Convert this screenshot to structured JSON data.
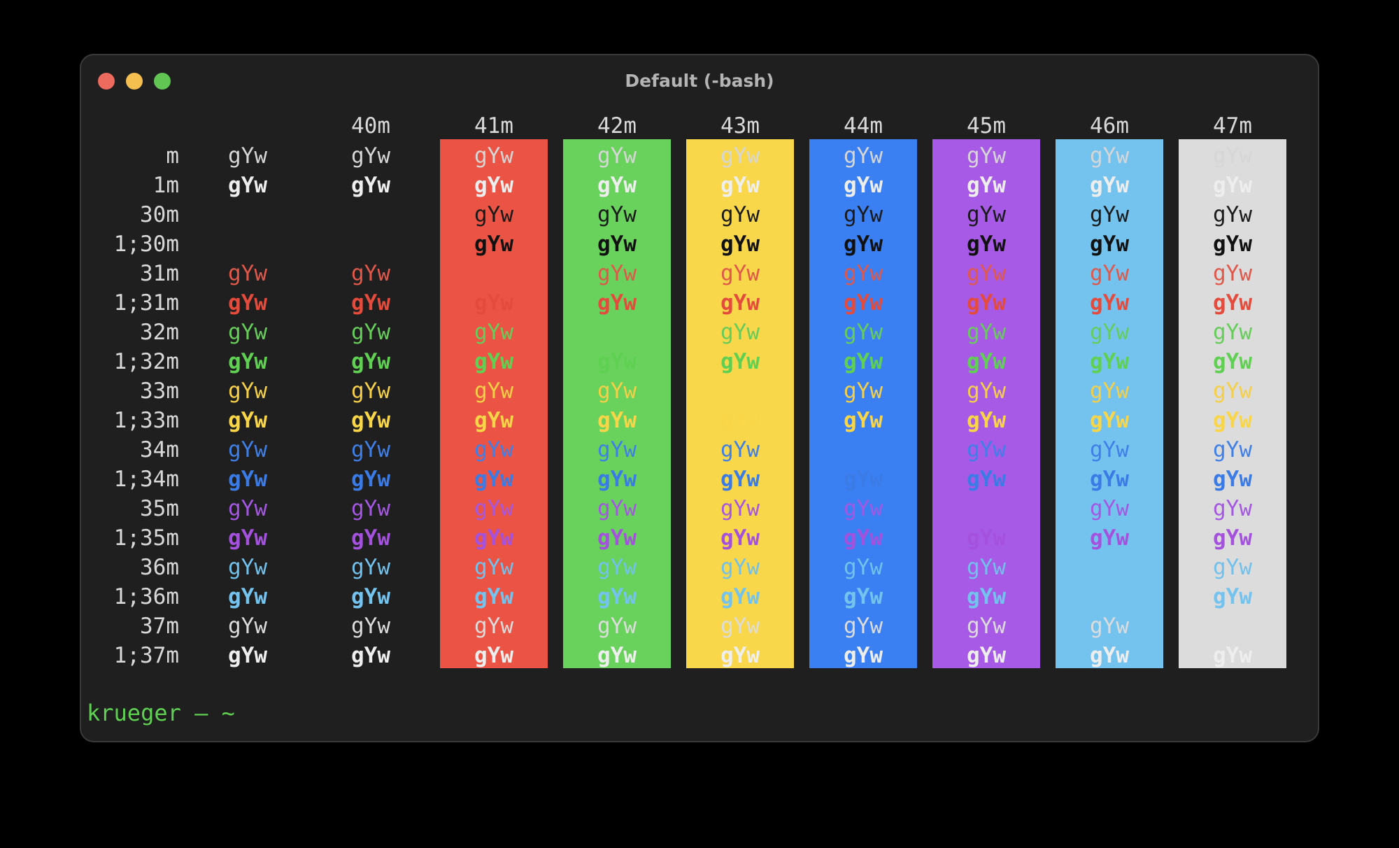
{
  "window": {
    "title": "Default (-bash)"
  },
  "table": {
    "sample": "gYw",
    "headers": [
      "40m",
      "41m",
      "42m",
      "43m",
      "44m",
      "45m",
      "46m",
      "47m"
    ],
    "rows": [
      {
        "label": "m",
        "bold": false,
        "fg": "#d6d6d6",
        "hide_in": []
      },
      {
        "label": "1m",
        "bold": true,
        "fg": "#eeeeee",
        "hide_in": []
      },
      {
        "label": "30m",
        "bold": false,
        "fg": "#1a1a1a",
        "hide_in": [
          "plain",
          "40m"
        ]
      },
      {
        "label": "1;30m",
        "bold": true,
        "fg": "#111111",
        "hide_in": [
          "plain",
          "40m"
        ]
      },
      {
        "label": "31m",
        "bold": false,
        "fg": "#e0584a",
        "hide_in": [
          "41m"
        ]
      },
      {
        "label": "1;31m",
        "bold": true,
        "fg": "#e44b3c",
        "hide_in": []
      },
      {
        "label": "32m",
        "bold": false,
        "fg": "#66cc5a",
        "hide_in": [
          "42m"
        ]
      },
      {
        "label": "1;32m",
        "bold": true,
        "fg": "#5fd052",
        "hide_in": []
      },
      {
        "label": "33m",
        "bold": false,
        "fg": "#f5d046",
        "hide_in": [
          "43m"
        ]
      },
      {
        "label": "1;33m",
        "bold": true,
        "fg": "#f9d648",
        "hide_in": []
      },
      {
        "label": "34m",
        "bold": false,
        "fg": "#3f7fe8",
        "hide_in": [
          "44m"
        ]
      },
      {
        "label": "1;34m",
        "bold": true,
        "fg": "#3a7be6",
        "hide_in": []
      },
      {
        "label": "35m",
        "bold": false,
        "fg": "#a457e2",
        "hide_in": [
          "45m"
        ]
      },
      {
        "label": "1;35m",
        "bold": true,
        "fg": "#a452de",
        "hide_in": []
      },
      {
        "label": "36m",
        "bold": false,
        "fg": "#72c0ec",
        "hide_in": [
          "46m"
        ]
      },
      {
        "label": "1;36m",
        "bold": true,
        "fg": "#74c3ee",
        "hide_in": []
      },
      {
        "label": "37m",
        "bold": false,
        "fg": "#dcdcdc",
        "hide_in": []
      },
      {
        "label": "1;37m",
        "bold": true,
        "fg": "#eeeeee",
        "hide_in": []
      }
    ],
    "backgrounds": {
      "41m": "#eb5444",
      "42m": "#68d25c",
      "43m": "#f8d74b",
      "44m": "#3b80f3",
      "45m": "#a75ae6",
      "46m": "#74c3ef",
      "47m": "#dcdcdc"
    }
  },
  "prompt": {
    "text": "krueger — ~",
    "color": "#5fd052"
  },
  "colors": {
    "window_bg": "#1f1f1f",
    "header_text": "#d8d8d8",
    "label_text": "#d8d8d8"
  }
}
